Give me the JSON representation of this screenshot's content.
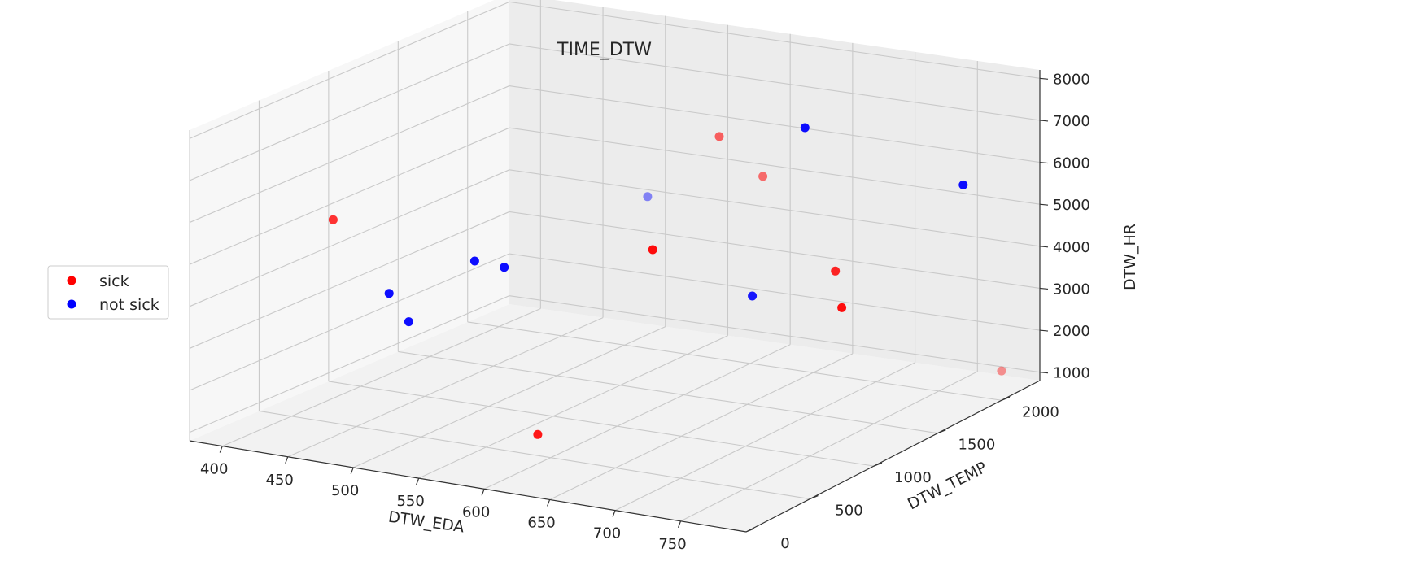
{
  "chart_data": {
    "type": "scatter",
    "projection": "3d",
    "title": "TIME_DTW",
    "xlabel": "DTW_EDA",
    "ylabel": "DTW_TEMP",
    "zlabel": "DTW_HR",
    "xlim": [
      375,
      800
    ],
    "ylim": [
      0,
      2300
    ],
    "zlim": [
      800,
      8200
    ],
    "xticks": [
      "400",
      "450",
      "500",
      "550",
      "600",
      "650",
      "700",
      "750"
    ],
    "yticks": [
      "0",
      "500",
      "1000",
      "1500",
      "2000"
    ],
    "zticks": [
      "1000",
      "2000",
      "3000",
      "4000",
      "5000",
      "6000",
      "7000",
      "8000"
    ],
    "grid": true,
    "legend": {
      "placement": "center-left",
      "entries": [
        "sick",
        "not sick"
      ]
    },
    "colors": {
      "sick": "#ff0000",
      "not sick": "#0000ff"
    },
    "series": [
      {
        "name": "sick",
        "color": "#ff0000",
        "points": [
          {
            "x": 430,
            "y": 520,
            "z": 5600,
            "alpha": 0.8
          },
          {
            "x": 590,
            "y": 500,
            "z": 1300,
            "alpha": 0.9
          },
          {
            "x": 565,
            "y": 1600,
            "z": 3950,
            "alpha": 0.95
          },
          {
            "x": 570,
            "y": 2050,
            "z": 6000,
            "alpha": 0.6
          },
          {
            "x": 610,
            "y": 2000,
            "z": 5300,
            "alpha": 0.55
          },
          {
            "x": 760,
            "y": 1100,
            "z": 5100,
            "alpha": 0.85
          },
          {
            "x": 760,
            "y": 1150,
            "z": 4150,
            "alpha": 0.95
          },
          {
            "x": 800,
            "y": 2000,
            "z": 1500,
            "alpha": 0.4
          }
        ]
      },
      {
        "name": "not sick",
        "color": "#0000ff",
        "points": [
          {
            "x": 470,
            "y": 550,
            "z": 4000,
            "alpha": 0.95
          },
          {
            "x": 480,
            "y": 600,
            "z": 3300,
            "alpha": 0.95
          },
          {
            "x": 510,
            "y": 800,
            "z": 4600,
            "alpha": 0.95
          },
          {
            "x": 535,
            "y": 780,
            "z": 4600,
            "alpha": 0.95
          },
          {
            "x": 545,
            "y": 1750,
            "z": 4900,
            "alpha": 0.45
          },
          {
            "x": 680,
            "y": 1650,
            "z": 7300,
            "alpha": 0.95
          },
          {
            "x": 690,
            "y": 1150,
            "z": 4100,
            "alpha": 0.9
          },
          {
            "x": 800,
            "y": 1700,
            "z": 6400,
            "alpha": 0.95
          }
        ]
      }
    ]
  }
}
